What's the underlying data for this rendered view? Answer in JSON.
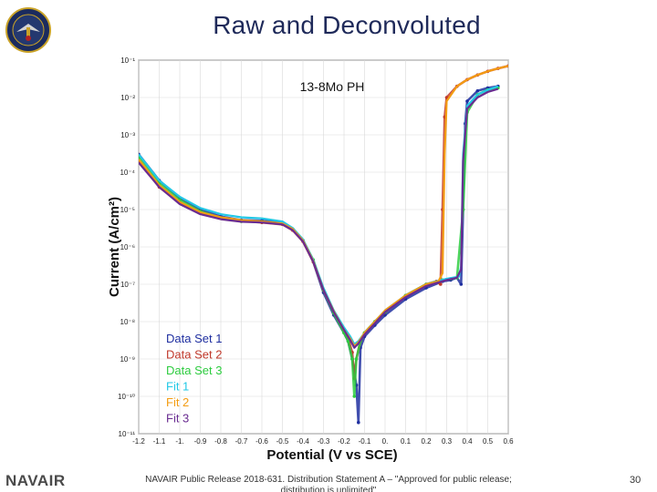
{
  "slide": {
    "title": "Raw and Deconvoluted",
    "footer_brand": "NAVAIR",
    "footer_text": "NAVAIR Public Release 2018-631. Distribution Statement A – \"Approved for public release; distribution is unlimited\"",
    "page_number": "30"
  },
  "colors": {
    "title": "#1f2a5a",
    "data_set_1": "#1f2fa0",
    "data_set_2": "#c0392b",
    "data_set_3": "#2ecc40",
    "fit_1": "#22c8e6",
    "fit_2": "#f39c12",
    "fit_3": "#6a2c91"
  },
  "chart_data": {
    "type": "line",
    "title": "13-8Mo PH",
    "xlabel": "Potential (V vs SCE)",
    "ylabel": "Current (A/cm²)",
    "y_scale": "log",
    "xlim": [
      -1.2,
      0.6
    ],
    "ylim": [
      1e-11,
      0.1
    ],
    "x_ticks": [
      "-1.2",
      "-1.1",
      "-1.",
      "-0.9",
      "-0.8",
      "-0.7",
      "-0.6",
      "-0.5",
      "-0.4",
      "-0.3",
      "-0.2",
      "-0.1",
      "0.",
      "0.1",
      "0.2",
      "0.3",
      "0.4",
      "0.5",
      "0.6"
    ],
    "y_ticks": [
      "10⁻¹¹",
      "10⁻¹⁰",
      "10⁻⁹",
      "10⁻⁸",
      "10⁻⁷",
      "10⁻⁶",
      "10⁻⁵",
      "10⁻⁴",
      "10⁻³",
      "10⁻²",
      "10⁻¹"
    ],
    "grid": true,
    "legend_position": "bottom-left",
    "series": [
      {
        "name": "Data Set 1",
        "style": "points",
        "x": [
          -1.2,
          -1.1,
          -1.0,
          -0.9,
          -0.8,
          -0.7,
          -0.6,
          -0.5,
          -0.45,
          -0.4,
          -0.35,
          -0.3,
          -0.25,
          -0.2,
          -0.18,
          -0.16,
          -0.14,
          -0.13,
          -0.12,
          -0.1,
          -0.05,
          0.0,
          0.1,
          0.2,
          0.28,
          0.32,
          0.35,
          0.37,
          0.38,
          0.39,
          0.4,
          0.45,
          0.5,
          0.55
        ],
        "y": [
          0.0003,
          6e-05,
          2e-05,
          1e-05,
          6.5e-06,
          5.2e-06,
          5e-06,
          4.5e-06,
          3e-06,
          1.5e-06,
          4e-07,
          6e-08,
          1.5e-08,
          5e-09,
          3e-09,
          1e-09,
          2e-10,
          2e-11,
          2e-09,
          4e-09,
          8e-09,
          1.5e-08,
          4e-08,
          8e-08,
          1.2e-07,
          1.3e-07,
          1.5e-07,
          1e-07,
          1e-05,
          0.002,
          0.008,
          0.015,
          0.018,
          0.02
        ]
      },
      {
        "name": "Data Set 2",
        "style": "points",
        "x": [
          -1.2,
          -1.1,
          -1.0,
          -0.9,
          -0.8,
          -0.7,
          -0.6,
          -0.5,
          -0.45,
          -0.4,
          -0.35,
          -0.3,
          -0.25,
          -0.2,
          -0.18,
          -0.16,
          -0.15,
          -0.14,
          -0.12,
          -0.1,
          -0.05,
          0.0,
          0.1,
          0.2,
          0.25,
          0.27,
          0.28,
          0.29,
          0.3,
          0.35,
          0.4,
          0.45,
          0.5,
          0.55,
          0.6
        ],
        "y": [
          0.0002,
          4e-05,
          1.5e-05,
          8e-06,
          6e-06,
          5e-06,
          4.5e-06,
          4e-06,
          2.8e-06,
          1.4e-06,
          4e-07,
          7e-08,
          1.8e-08,
          6e-09,
          3.5e-09,
          1.5e-09,
          3e-10,
          1e-09,
          3e-09,
          5e-09,
          1e-08,
          1.8e-08,
          5e-08,
          1e-07,
          1.2e-07,
          1e-07,
          1e-05,
          0.003,
          0.01,
          0.02,
          0.03,
          0.04,
          0.05,
          0.06,
          0.07
        ]
      },
      {
        "name": "Data Set 3",
        "style": "points",
        "x": [
          -1.2,
          -1.1,
          -1.0,
          -0.9,
          -0.8,
          -0.7,
          -0.6,
          -0.5,
          -0.45,
          -0.4,
          -0.35,
          -0.3,
          -0.25,
          -0.2,
          -0.18,
          -0.16,
          -0.15,
          -0.14,
          -0.12,
          -0.1,
          -0.05,
          0.0,
          0.1,
          0.2,
          0.28,
          0.32,
          0.35,
          0.38,
          0.4,
          0.45,
          0.5,
          0.55
        ],
        "y": [
          0.00025,
          5e-05,
          1.8e-05,
          9e-06,
          6e-06,
          4.8e-06,
          4.7e-06,
          4.2e-06,
          3e-06,
          1.5e-06,
          4.5e-07,
          7e-08,
          1.7e-08,
          5e-09,
          3e-09,
          1e-09,
          1e-10,
          1e-09,
          3e-09,
          5e-09,
          1e-08,
          1.8e-08,
          5e-08,
          1e-07,
          1.3e-07,
          1.4e-07,
          1.5e-07,
          1e-05,
          0.004,
          0.012,
          0.016,
          0.018
        ]
      },
      {
        "name": "Fit 1",
        "style": "line",
        "x": [
          -1.2,
          -1.1,
          -1.0,
          -0.9,
          -0.8,
          -0.7,
          -0.6,
          -0.5,
          -0.45,
          -0.4,
          -0.35,
          -0.3,
          -0.25,
          -0.2,
          -0.17,
          -0.15,
          -0.13,
          -0.1,
          -0.05,
          0.0,
          0.1,
          0.2,
          0.3,
          0.36,
          0.37,
          0.38,
          0.4,
          0.45,
          0.5,
          0.55
        ],
        "y": [
          0.0003,
          6e-05,
          2.2e-05,
          1.1e-05,
          7.5e-06,
          6.2e-06,
          5.8e-06,
          4.8e-06,
          3.2e-06,
          1.6e-06,
          4.5e-07,
          8e-08,
          2e-08,
          7e-09,
          4e-09,
          2.5e-09,
          3e-09,
          5e-09,
          1e-08,
          2e-08,
          5e-08,
          1e-07,
          1.4e-07,
          1.6e-07,
          3e-07,
          0.0003,
          0.006,
          0.012,
          0.016,
          0.02
        ]
      },
      {
        "name": "Fit 2",
        "style": "line",
        "x": [
          -1.2,
          -1.1,
          -1.0,
          -0.9,
          -0.8,
          -0.7,
          -0.6,
          -0.5,
          -0.45,
          -0.4,
          -0.35,
          -0.3,
          -0.25,
          -0.2,
          -0.17,
          -0.15,
          -0.13,
          -0.1,
          -0.05,
          0.0,
          0.1,
          0.2,
          0.26,
          0.28,
          0.29,
          0.3,
          0.35,
          0.4,
          0.45,
          0.5,
          0.55,
          0.6
        ],
        "y": [
          0.00022,
          4.5e-05,
          1.6e-05,
          8.5e-06,
          6.2e-06,
          5.2e-06,
          4.8e-06,
          4.2e-06,
          3e-06,
          1.5e-06,
          4.2e-07,
          7e-08,
          1.9e-08,
          6e-09,
          3.5e-09,
          2.2e-09,
          2.8e-09,
          5e-09,
          1e-08,
          2e-08,
          5e-08,
          1e-07,
          1.2e-07,
          2e-07,
          0.0003,
          0.008,
          0.02,
          0.03,
          0.04,
          0.05,
          0.06,
          0.07
        ]
      },
      {
        "name": "Fit 3",
        "style": "line",
        "x": [
          -1.2,
          -1.1,
          -1.0,
          -0.9,
          -0.8,
          -0.7,
          -0.6,
          -0.5,
          -0.45,
          -0.4,
          -0.35,
          -0.3,
          -0.25,
          -0.2,
          -0.17,
          -0.15,
          -0.13,
          -0.1,
          -0.05,
          0.0,
          0.1,
          0.2,
          0.3,
          0.35,
          0.37,
          0.38,
          0.4,
          0.45,
          0.5,
          0.55
        ],
        "y": [
          0.00018,
          4e-05,
          1.4e-05,
          7.5e-06,
          5.5e-06,
          4.7e-06,
          4.5e-06,
          4e-06,
          2.8e-06,
          1.4e-06,
          4e-07,
          7e-08,
          1.8e-08,
          6e-09,
          3.2e-09,
          2e-09,
          2.6e-09,
          4.5e-09,
          9e-09,
          1.8e-08,
          4.5e-08,
          9e-08,
          1.3e-07,
          1.5e-07,
          2.5e-07,
          0.0002,
          0.005,
          0.01,
          0.014,
          0.017
        ]
      }
    ]
  }
}
